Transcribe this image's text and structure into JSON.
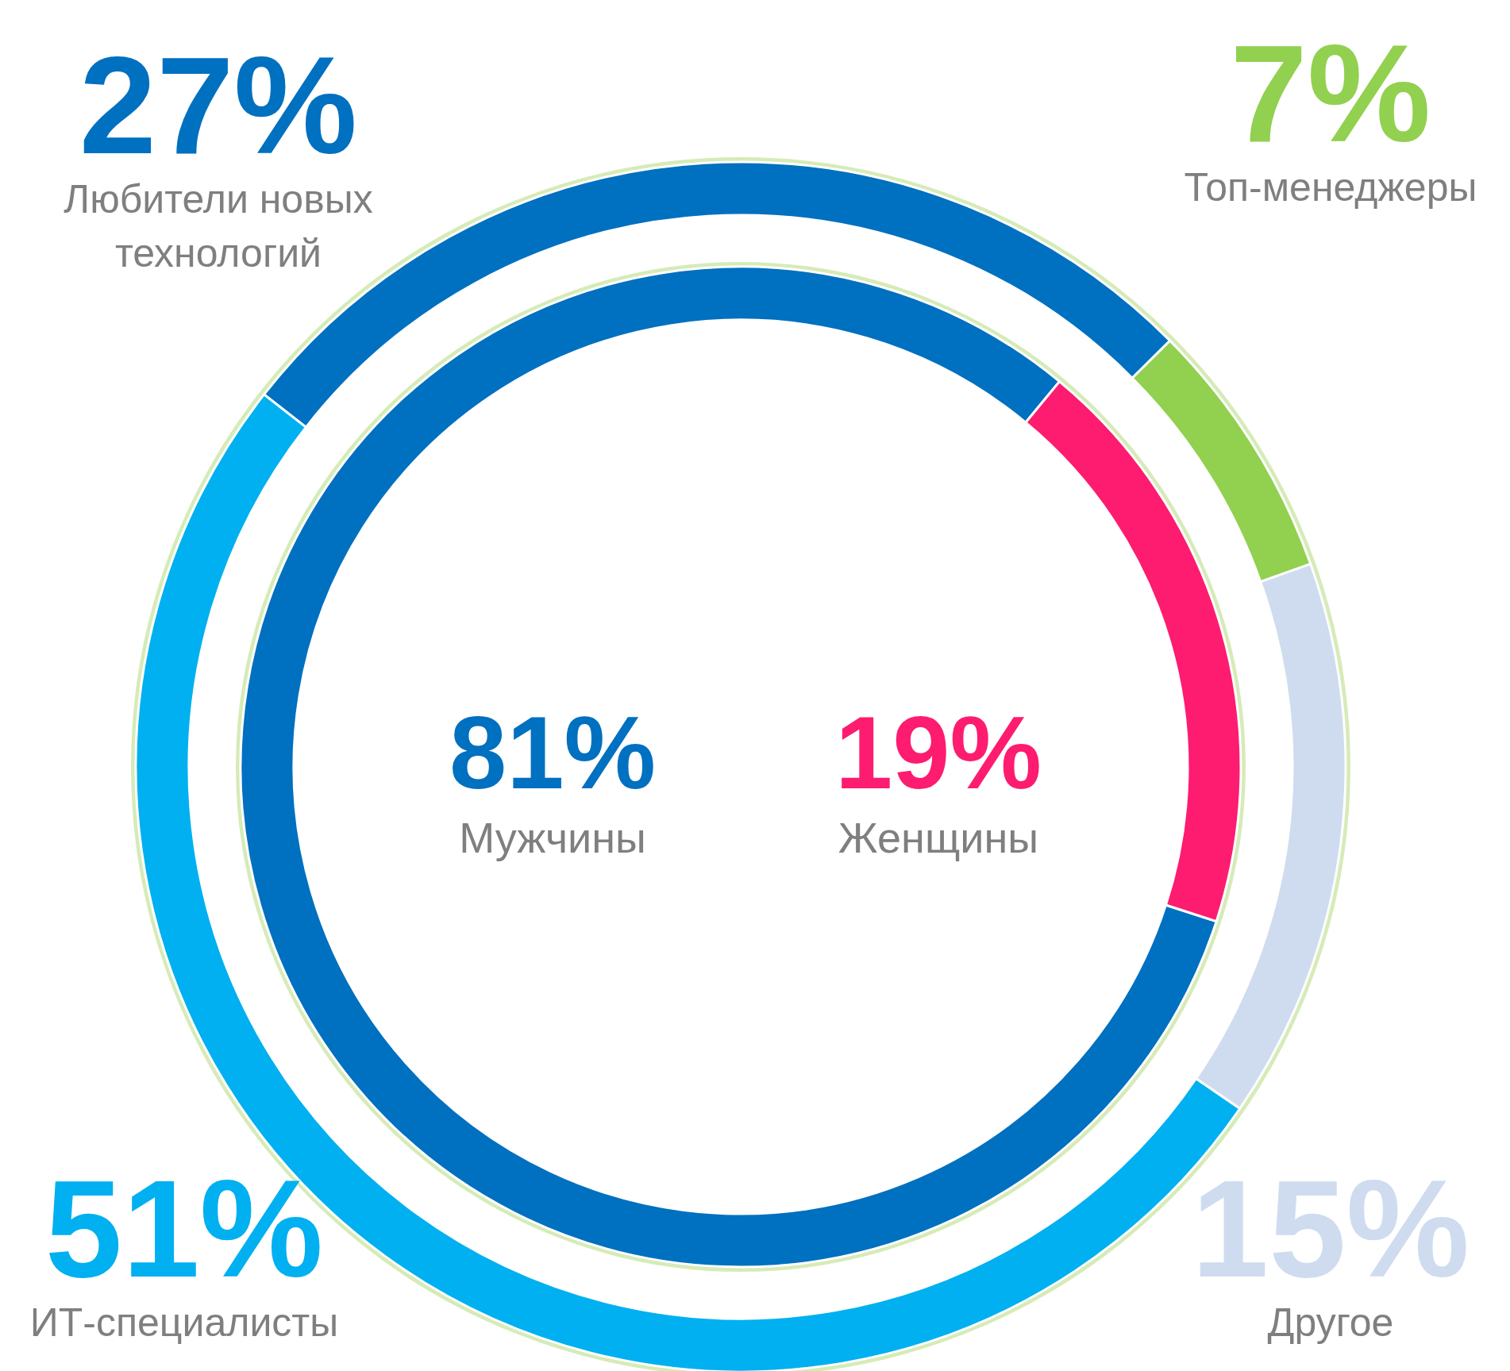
{
  "chart_data": [
    {
      "type": "donut",
      "categories": [
        "Любители новых технологий",
        "Топ-менеджеры",
        "Другое",
        "ИТ-специалисты"
      ],
      "values": [
        27,
        7,
        15,
        51
      ],
      "colors": [
        "#0070c0",
        "#92d050",
        "#cfdcef",
        "#00b0f0"
      ],
      "value_labels": [
        "27%",
        "7%",
        "15%",
        "51%"
      ]
    },
    {
      "type": "donut",
      "categories": [
        "Мужчины",
        "Женщины"
      ],
      "values": [
        81,
        19
      ],
      "colors": [
        "#0070c0",
        "#fd1c6f"
      ],
      "value_labels": [
        "81%",
        "19%"
      ]
    }
  ]
}
